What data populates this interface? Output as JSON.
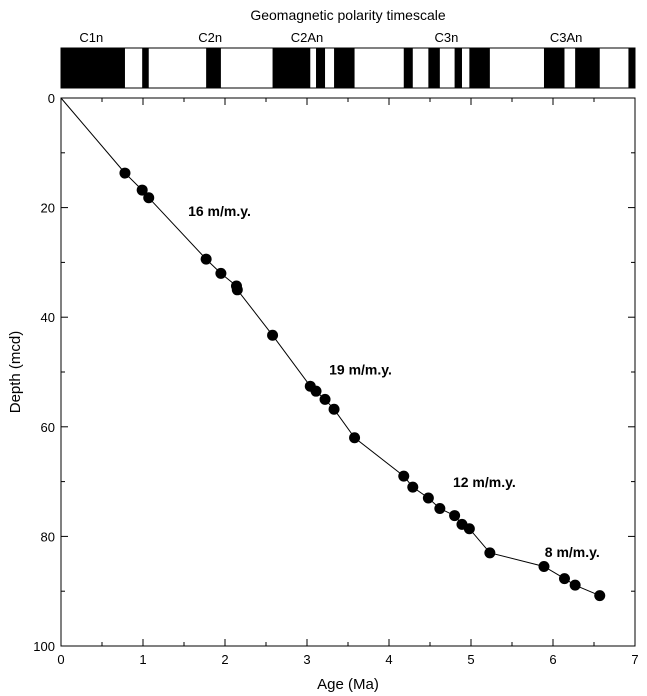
{
  "chart_data": {
    "type": "scatter",
    "title": "",
    "xlabel": "Age (Ma)",
    "ylabel": "Depth (mcd)",
    "xlim": [
      0,
      7
    ],
    "ylim": [
      0,
      100
    ],
    "y_inverted": true,
    "xticks": [
      "0",
      "1",
      "2",
      "3",
      "4",
      "5",
      "6",
      "7"
    ],
    "yticks": [
      "0",
      "20",
      "40",
      "60",
      "80",
      "100"
    ],
    "grid": false,
    "series": [
      {
        "name": "",
        "x": [
          0,
          0.78,
          0.99,
          1.07,
          1.77,
          1.95,
          2.14,
          2.15,
          2.58,
          3.04,
          3.11,
          3.22,
          3.33,
          3.58,
          4.18,
          4.29,
          4.48,
          4.62,
          4.8,
          4.89,
          4.98,
          5.23,
          5.89,
          6.14,
          6.27,
          6.57
        ],
        "y": [
          0,
          13.7,
          16.8,
          18.2,
          29.4,
          32.0,
          34.3,
          35.0,
          43.3,
          52.6,
          53.5,
          55.0,
          56.8,
          62.0,
          69.0,
          71.0,
          73.0,
          74.9,
          76.2,
          77.8,
          78.6,
          83.0,
          85.5,
          87.7,
          88.9,
          90.8
        ]
      }
    ],
    "annotations": [
      {
        "text": "16 m/m.y.",
        "x": 1.55,
        "y": 21.5
      },
      {
        "text": "19 m/m.y.",
        "x": 3.27,
        "y": 50.5
      },
      {
        "text": "12 m/m.y.",
        "x": 4.78,
        "y": 71.0
      },
      {
        "text": "8 m/m.y.",
        "x": 5.9,
        "y": 83.8
      }
    ],
    "polarity_timescale": {
      "title": "Geomagnetic polarity timescale",
      "chron_labels": [
        {
          "label": "C1n",
          "age": 0.37
        },
        {
          "label": "C2n",
          "age": 1.82
        },
        {
          "label": "C2An",
          "age": 3.0
        },
        {
          "label": "C3n",
          "age": 4.7
        },
        {
          "label": "C3An",
          "age": 6.16
        }
      ],
      "normal_intervals": [
        [
          0.0,
          0.78
        ],
        [
          0.99,
          1.07
        ],
        [
          1.77,
          1.95
        ],
        [
          2.58,
          3.04
        ],
        [
          3.11,
          3.22
        ],
        [
          3.33,
          3.58
        ],
        [
          4.18,
          4.29
        ],
        [
          4.48,
          4.62
        ],
        [
          4.8,
          4.89
        ],
        [
          4.98,
          5.23
        ],
        [
          5.89,
          6.14
        ],
        [
          6.27,
          6.57
        ],
        [
          6.92,
          7.0
        ]
      ],
      "fill_color": "#000000",
      "background_color": "#ffffff"
    }
  }
}
